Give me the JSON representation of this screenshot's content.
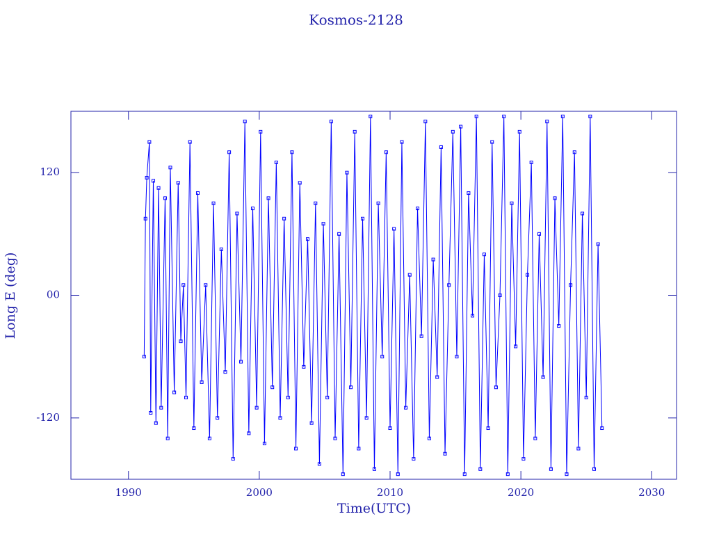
{
  "chart_data": {
    "type": "line",
    "title": "Kosmos-2128",
    "x_label": "Time(UTC)",
    "y_label": "Long E (deg)",
    "color": "#0000ff",
    "xlim": [
      1985.6,
      2031.9
    ],
    "ylim": [
      -180,
      180
    ],
    "xticks": [
      1990,
      2000,
      2010,
      2020,
      2030
    ],
    "yticks": [
      -120,
      {
        "value": 0,
        "label": "00"
      },
      120
    ],
    "x": [
      1991.2,
      1991.3,
      1991.4,
      1991.6,
      1991.7,
      1991.9,
      1992.1,
      1992.3,
      1992.5,
      1992.8,
      1993.0,
      1993.2,
      1993.5,
      1993.8,
      1994.0,
      1994.2,
      1994.4,
      1994.7,
      1995.0,
      1995.3,
      1995.6,
      1995.9,
      1996.2,
      1996.5,
      1996.8,
      1997.1,
      1997.4,
      1997.7,
      1998.0,
      1998.3,
      1998.6,
      1998.9,
      1999.2,
      1999.5,
      1999.8,
      2000.1,
      2000.4,
      2000.7,
      2001.0,
      2001.3,
      2001.6,
      2001.9,
      2002.2,
      2002.5,
      2002.8,
      2003.1,
      2003.4,
      2003.7,
      2004.0,
      2004.3,
      2004.6,
      2004.9,
      2005.2,
      2005.5,
      2005.8,
      2006.1,
      2006.4,
      2006.7,
      2007.0,
      2007.3,
      2007.6,
      2007.9,
      2008.2,
      2008.5,
      2008.8,
      2009.1,
      2009.4,
      2009.7,
      2010.0,
      2010.3,
      2010.6,
      2010.9,
      2011.2,
      2011.5,
      2011.8,
      2012.1,
      2012.4,
      2012.7,
      2013.0,
      2013.3,
      2013.6,
      2013.9,
      2014.2,
      2014.5,
      2014.8,
      2015.1,
      2015.4,
      2015.7,
      2016.0,
      2016.3,
      2016.6,
      2016.9,
      2017.2,
      2017.5,
      2017.8,
      2018.1,
      2018.4,
      2018.7,
      2019.0,
      2019.3,
      2019.6,
      2019.9,
      2020.2,
      2020.5,
      2020.8,
      2021.1,
      2021.4,
      2021.7,
      2022.0,
      2022.3,
      2022.6,
      2022.9,
      2023.2,
      2023.5,
      2023.8,
      2024.1,
      2024.4,
      2024.7,
      2025.0,
      2025.3,
      2025.6,
      2025.9,
      2026.2
    ],
    "values": [
      -60,
      75,
      115,
      150,
      -115,
      112,
      -125,
      105,
      -110,
      95,
      -140,
      125,
      -95,
      110,
      -45,
      10,
      -100,
      150,
      -130,
      100,
      -85,
      10,
      -140,
      90,
      -120,
      45,
      -75,
      140,
      -160,
      80,
      -65,
      170,
      -135,
      85,
      -110,
      160,
      -145,
      95,
      -90,
      130,
      -120,
      75,
      -100,
      140,
      -150,
      110,
      -70,
      55,
      -125,
      90,
      -165,
      70,
      -100,
      170,
      -140,
      60,
      -175,
      120,
      -90,
      160,
      -150,
      75,
      -120,
      175,
      -170,
      90,
      -60,
      140,
      -130,
      65,
      -175,
      150,
      -110,
      20,
      -160,
      85,
      -40,
      170,
      -140,
      35,
      -80,
      145,
      -155,
      10,
      160,
      -60,
      165,
      -175,
      100,
      -20,
      175,
      -170,
      40,
      -130,
      150,
      -90,
      0,
      175,
      -175,
      90,
      -50,
      160,
      -160,
      20,
      130,
      -140,
      60,
      -80,
      170,
      -170,
      95,
      -30,
      175,
      -175,
      10,
      140,
      -150,
      80,
      -100,
      175,
      -170,
      50,
      -130
    ]
  }
}
